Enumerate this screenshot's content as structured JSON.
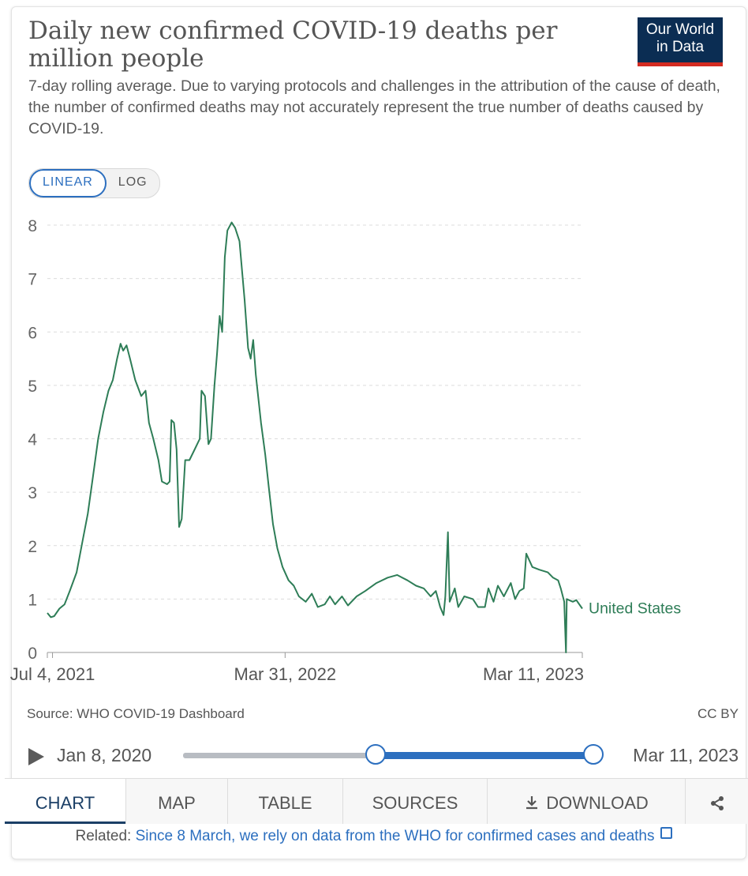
{
  "header": {
    "title": "Daily new confirmed COVID-19 deaths per million people",
    "subtitle": "7-day rolling average. Due to varying protocols and challenges in the attribution of the cause of death, the number of confirmed deaths may not accurately represent the true number of deaths caused by COVID-19.",
    "logo_line1": "Our World",
    "logo_line2": "in Data"
  },
  "scale_toggle": {
    "linear": "LINEAR",
    "log": "LOG",
    "selected": "LINEAR"
  },
  "chart_data": {
    "type": "line",
    "title": "Daily new confirmed COVID-19 deaths per million people",
    "xlabel": "",
    "ylabel": "",
    "ylim": [
      0,
      8
    ],
    "yticks": [
      0,
      1,
      2,
      3,
      4,
      5,
      6,
      7,
      8
    ],
    "xlim": [
      "2021-06-28",
      "2023-03-11"
    ],
    "xticks": [
      {
        "date": "2021-07-04",
        "label": "Jul 4, 2021"
      },
      {
        "date": "2022-03-31",
        "label": "Mar 31, 2022"
      },
      {
        "date": "2023-03-11",
        "label": "Mar 11, 2023"
      }
    ],
    "grid": "horizontal-dashed",
    "legend": "end-of-line label",
    "series": [
      {
        "name": "United States",
        "color": "#2e7d57",
        "points": [
          [
            "2021-06-28",
            0.74
          ],
          [
            "2021-07-02",
            0.66
          ],
          [
            "2021-07-06",
            0.68
          ],
          [
            "2021-07-12",
            0.82
          ],
          [
            "2021-07-18",
            0.9
          ],
          [
            "2021-07-24",
            1.15
          ],
          [
            "2021-08-01",
            1.5
          ],
          [
            "2021-08-08",
            2.1
          ],
          [
            "2021-08-14",
            2.6
          ],
          [
            "2021-08-20",
            3.3
          ],
          [
            "2021-08-26",
            4.0
          ],
          [
            "2021-09-01",
            4.5
          ],
          [
            "2021-09-07",
            4.9
          ],
          [
            "2021-09-12",
            5.1
          ],
          [
            "2021-09-17",
            5.5
          ],
          [
            "2021-09-21",
            5.78
          ],
          [
            "2021-09-24",
            5.65
          ],
          [
            "2021-09-28",
            5.75
          ],
          [
            "2021-10-02",
            5.5
          ],
          [
            "2021-10-08",
            5.1
          ],
          [
            "2021-10-15",
            4.8
          ],
          [
            "2021-10-20",
            4.9
          ],
          [
            "2021-10-24",
            4.3
          ],
          [
            "2021-10-29",
            4.0
          ],
          [
            "2021-11-04",
            3.6
          ],
          [
            "2021-11-08",
            3.2
          ],
          [
            "2021-11-14",
            3.15
          ],
          [
            "2021-11-17",
            3.2
          ],
          [
            "2021-11-19",
            4.35
          ],
          [
            "2021-11-22",
            4.3
          ],
          [
            "2021-11-25",
            3.8
          ],
          [
            "2021-11-28",
            2.35
          ],
          [
            "2021-12-01",
            2.5
          ],
          [
            "2021-12-05",
            3.6
          ],
          [
            "2021-12-10",
            3.6
          ],
          [
            "2021-12-16",
            3.8
          ],
          [
            "2021-12-22",
            4.0
          ],
          [
            "2021-12-24",
            4.9
          ],
          [
            "2021-12-28",
            4.8
          ],
          [
            "2022-01-01",
            3.9
          ],
          [
            "2022-01-04",
            4.0
          ],
          [
            "2022-01-08",
            5.0
          ],
          [
            "2022-01-11",
            5.6
          ],
          [
            "2022-01-14",
            6.3
          ],
          [
            "2022-01-17",
            6.0
          ],
          [
            "2022-01-20",
            7.4
          ],
          [
            "2022-01-23",
            7.9
          ],
          [
            "2022-01-28",
            8.05
          ],
          [
            "2022-02-01",
            7.95
          ],
          [
            "2022-02-06",
            7.7
          ],
          [
            "2022-02-12",
            6.6
          ],
          [
            "2022-02-16",
            5.7
          ],
          [
            "2022-02-19",
            5.5
          ],
          [
            "2022-02-22",
            5.85
          ],
          [
            "2022-02-25",
            5.2
          ],
          [
            "2022-03-03",
            4.3
          ],
          [
            "2022-03-08",
            3.7
          ],
          [
            "2022-03-12",
            3.1
          ],
          [
            "2022-03-17",
            2.4
          ],
          [
            "2022-03-22",
            1.95
          ],
          [
            "2022-03-28",
            1.6
          ],
          [
            "2022-04-04",
            1.35
          ],
          [
            "2022-04-10",
            1.25
          ],
          [
            "2022-04-16",
            1.05
          ],
          [
            "2022-04-24",
            0.95
          ],
          [
            "2022-05-01",
            1.1
          ],
          [
            "2022-05-08",
            0.85
          ],
          [
            "2022-05-16",
            0.9
          ],
          [
            "2022-05-22",
            1.05
          ],
          [
            "2022-05-28",
            0.9
          ],
          [
            "2022-06-05",
            1.05
          ],
          [
            "2022-06-12",
            0.88
          ],
          [
            "2022-06-22",
            1.05
          ],
          [
            "2022-07-02",
            1.15
          ],
          [
            "2022-07-15",
            1.3
          ],
          [
            "2022-07-28",
            1.4
          ],
          [
            "2022-08-08",
            1.45
          ],
          [
            "2022-08-20",
            1.35
          ],
          [
            "2022-08-30",
            1.25
          ],
          [
            "2022-09-08",
            1.2
          ],
          [
            "2022-09-16",
            1.05
          ],
          [
            "2022-09-22",
            1.15
          ],
          [
            "2022-09-27",
            0.85
          ],
          [
            "2022-10-01",
            0.7
          ],
          [
            "2022-10-03",
            1.05
          ],
          [
            "2022-10-06",
            2.25
          ],
          [
            "2022-10-08",
            0.95
          ],
          [
            "2022-10-14",
            1.2
          ],
          [
            "2022-10-18",
            0.85
          ],
          [
            "2022-10-25",
            1.05
          ],
          [
            "2022-11-04",
            1.0
          ],
          [
            "2022-11-10",
            0.85
          ],
          [
            "2022-11-18",
            0.85
          ],
          [
            "2022-11-22",
            1.2
          ],
          [
            "2022-11-28",
            0.95
          ],
          [
            "2022-12-03",
            1.25
          ],
          [
            "2022-12-10",
            1.05
          ],
          [
            "2022-12-18",
            1.3
          ],
          [
            "2022-12-23",
            1.0
          ],
          [
            "2022-12-28",
            1.15
          ],
          [
            "2023-01-02",
            1.2
          ],
          [
            "2023-01-05",
            1.85
          ],
          [
            "2023-01-12",
            1.6
          ],
          [
            "2023-01-20",
            1.55
          ],
          [
            "2023-01-30",
            1.5
          ],
          [
            "2023-02-05",
            1.4
          ],
          [
            "2023-02-11",
            1.35
          ],
          [
            "2023-02-14",
            1.2
          ],
          [
            "2023-02-18",
            0.95
          ],
          [
            "2023-02-20",
            0.0
          ],
          [
            "2023-02-21",
            1.0
          ],
          [
            "2023-02-28",
            0.95
          ],
          [
            "2023-03-04",
            0.98
          ],
          [
            "2023-03-11",
            0.82
          ]
        ]
      }
    ]
  },
  "footer": {
    "source": "Source: WHO COVID-19 Dashboard",
    "license": "CC BY",
    "timeline_start": "Jan 8, 2020",
    "timeline_end": "Mar 11, 2023",
    "timeline_range_start_fraction": 0.47,
    "timeline_range_end_fraction": 1.0,
    "play_icon": "play-icon"
  },
  "tabs": [
    {
      "label": "CHART",
      "active": true
    },
    {
      "label": "MAP"
    },
    {
      "label": "TABLE"
    },
    {
      "label": "SOURCES"
    },
    {
      "label": "DOWNLOAD",
      "icon": "download-icon"
    },
    {
      "label": "",
      "icon": "share-icon"
    }
  ],
  "related": {
    "prefix": "Related:",
    "link": "Since 8 March, we rely on data from the WHO for confirmed cases and deaths"
  }
}
